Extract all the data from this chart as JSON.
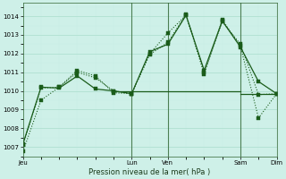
{
  "xlabel": "Pression niveau de la mer( hPa )",
  "bg_color": "#cef0e8",
  "line_color": "#1a5c1a",
  "grid_major_color": "#aaddcc",
  "grid_minor_color": "#c8ece4",
  "ylim": [
    1006.5,
    1014.7
  ],
  "yticks": [
    1007,
    1008,
    1009,
    1010,
    1011,
    1012,
    1013,
    1014
  ],
  "xlim": [
    0,
    168
  ],
  "day_labels": [
    "Jeu",
    "Lun",
    "Ven",
    "Sam",
    "Dim"
  ],
  "day_positions": [
    0,
    72,
    96,
    144,
    168
  ],
  "vline_positions": [
    72,
    96,
    144,
    168
  ],
  "series1_x": [
    0,
    12,
    24,
    36,
    48,
    60,
    72,
    84,
    96,
    108,
    120,
    132,
    144,
    156,
    168
  ],
  "series1_y": [
    1006.75,
    1009.5,
    1010.2,
    1011.1,
    1010.8,
    1009.9,
    1009.85,
    1012.0,
    1013.1,
    1014.05,
    1011.0,
    1013.7,
    1012.5,
    1009.8,
    1009.85
  ],
  "series2_x": [
    0,
    12,
    24,
    36,
    48,
    60,
    72,
    84,
    96,
    108,
    120,
    132,
    144,
    156,
    168
  ],
  "series2_y": [
    1007.1,
    1010.15,
    1010.2,
    1011.0,
    1010.7,
    1010.0,
    1009.85,
    1011.95,
    1012.6,
    1014.1,
    1010.9,
    1013.8,
    1012.4,
    1008.55,
    1009.85
  ],
  "series3_x": [
    0,
    12,
    24,
    36,
    48,
    60,
    72,
    84,
    96,
    108,
    120,
    132,
    144,
    156,
    168
  ],
  "series3_y": [
    1007.15,
    1010.2,
    1010.15,
    1010.8,
    1010.1,
    1010.0,
    1009.85,
    1012.1,
    1012.5,
    1014.05,
    1011.1,
    1013.75,
    1012.35,
    1010.5,
    1009.85
  ],
  "flat_line_x": [
    60,
    144
  ],
  "flat_line_y": [
    1010.0,
    1010.0
  ],
  "flat2_line_x": [
    144,
    168
  ],
  "flat2_line_y": [
    1009.85,
    1009.85
  ]
}
